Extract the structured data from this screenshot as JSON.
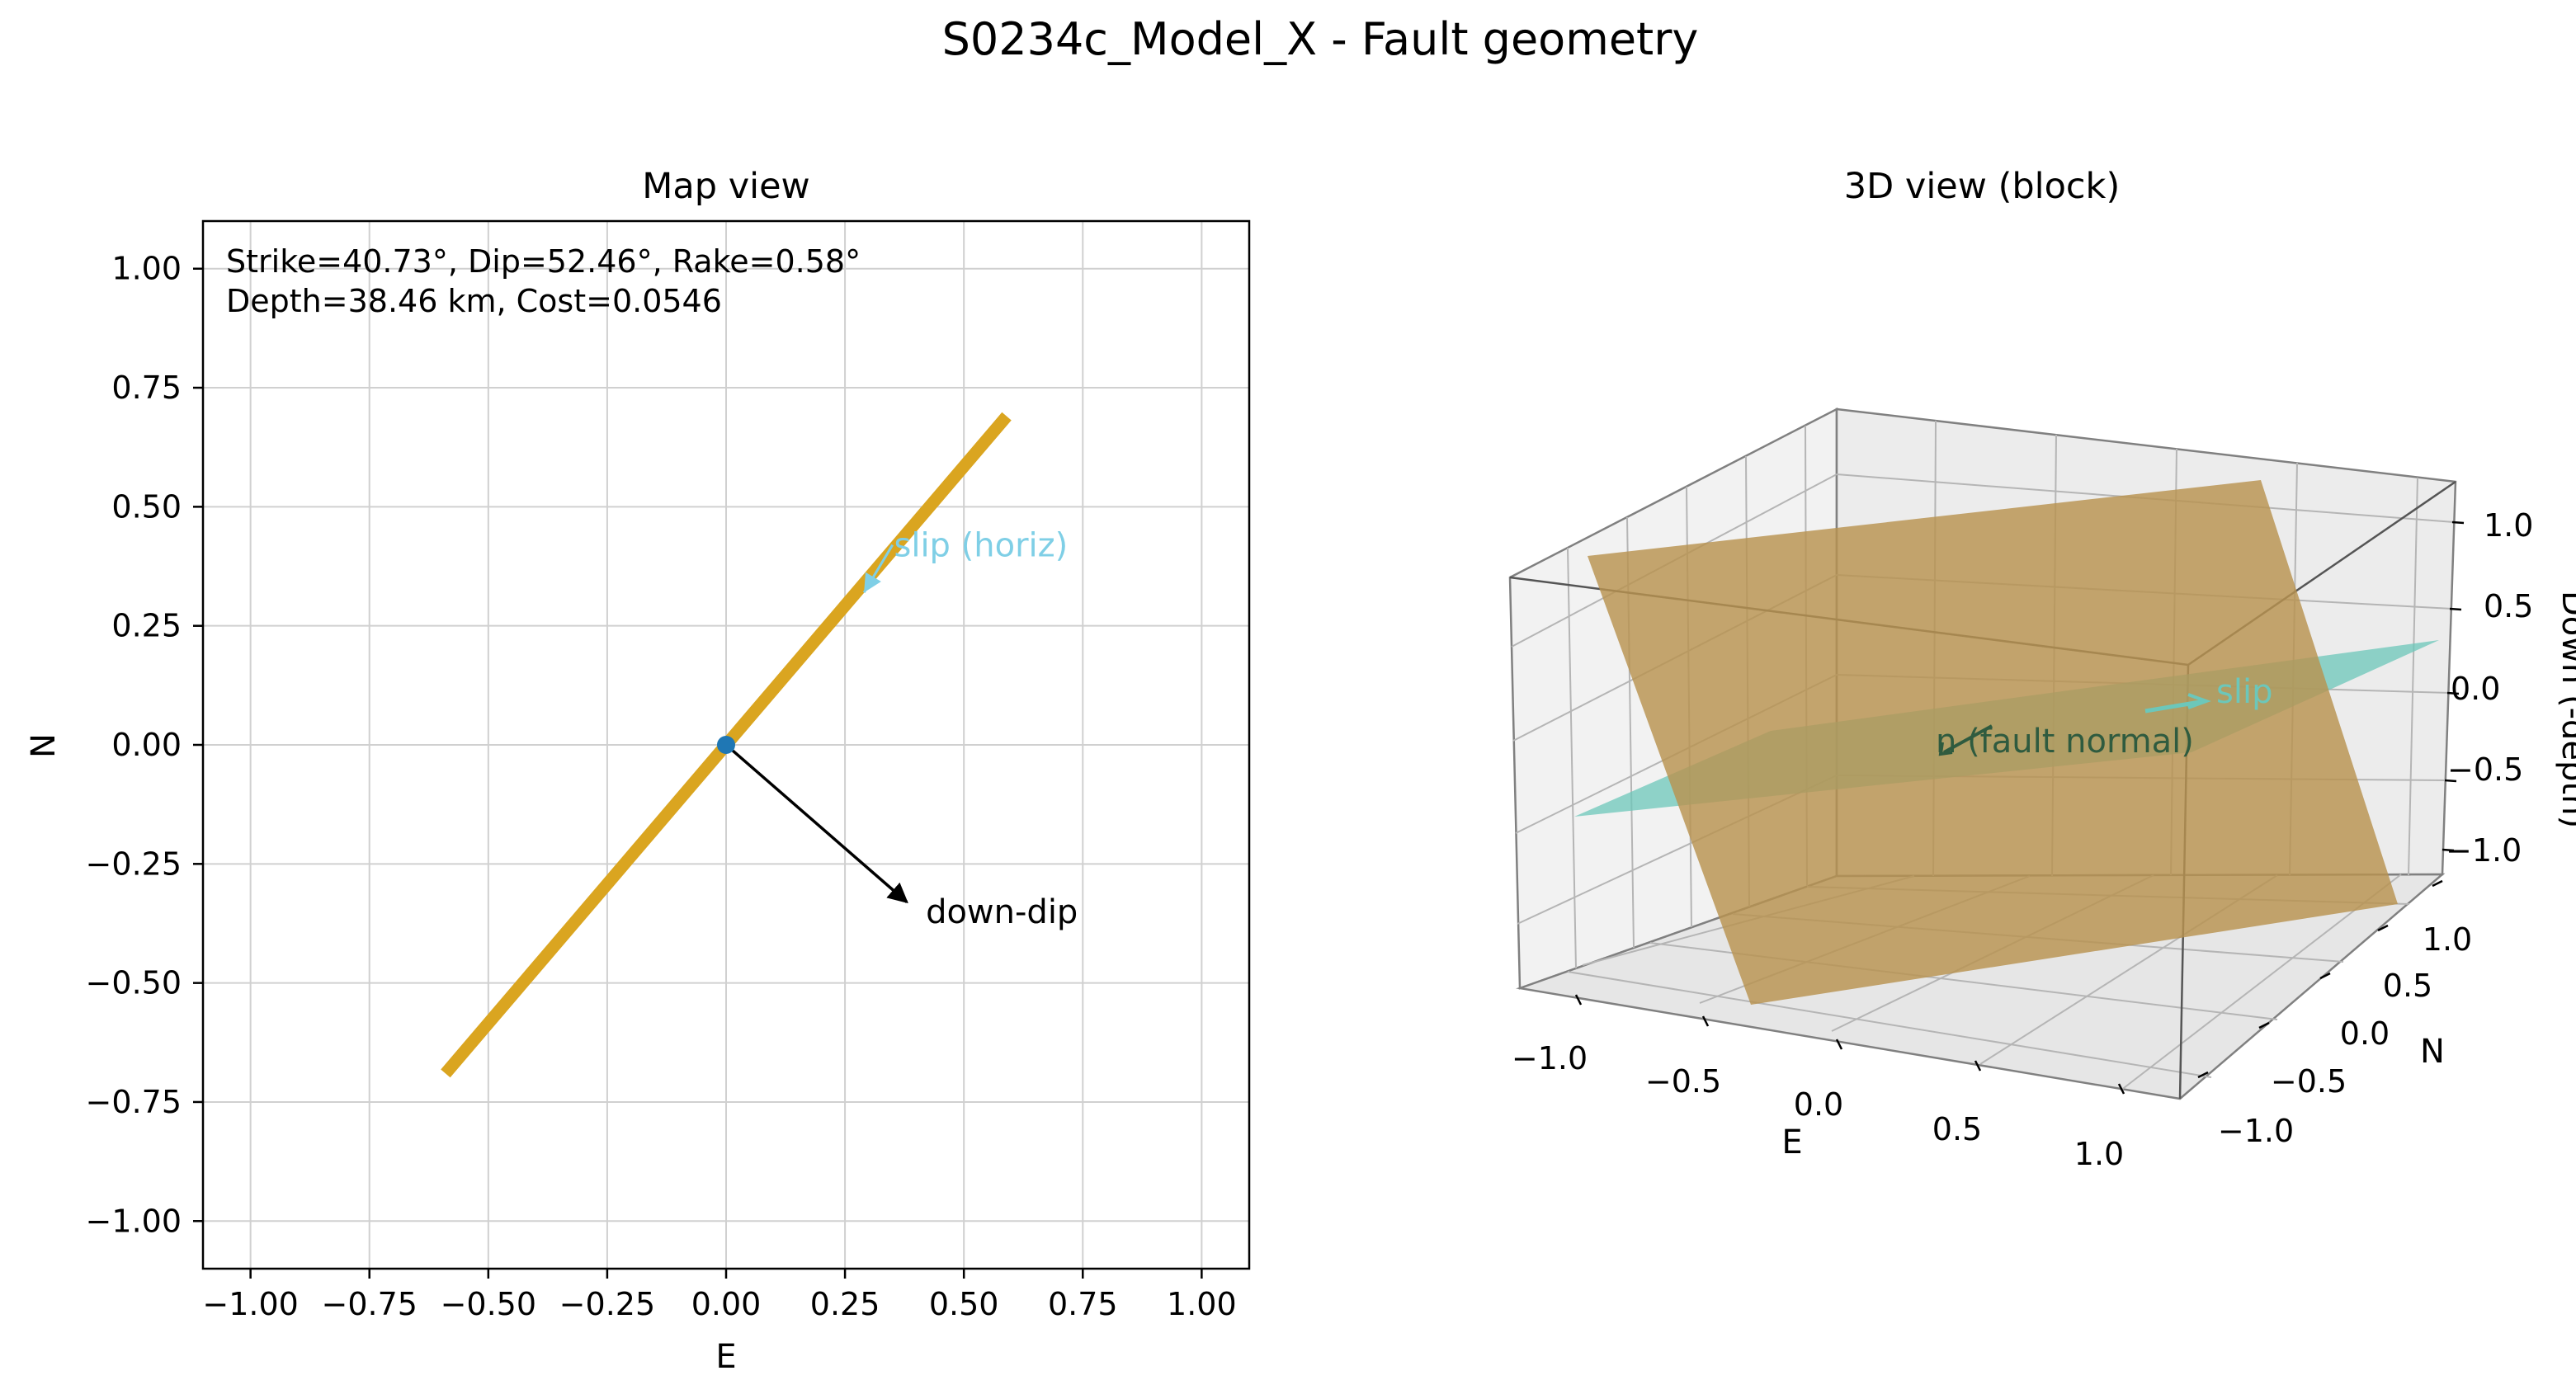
{
  "figure": {
    "suptitle": "S0234c_Model_X - Fault geometry"
  },
  "chart_data": [
    {
      "type": "line",
      "title": "Map view",
      "xlabel": "E",
      "ylabel": "N",
      "xlim": [
        -1.1,
        1.1
      ],
      "ylim": [
        -1.1,
        1.1
      ],
      "grid": true,
      "xticks": [
        -1.0,
        -0.75,
        -0.5,
        -0.25,
        0.0,
        0.25,
        0.5,
        0.75,
        1.0
      ],
      "yticks": [
        -1.0,
        -0.75,
        -0.5,
        -0.25,
        0.0,
        0.25,
        0.5,
        0.75,
        1.0
      ],
      "xtick_labels": [
        "−1.00",
        "−0.75",
        "−0.50",
        "−0.25",
        "0.00",
        "0.25",
        "0.50",
        "0.75",
        "1.00"
      ],
      "ytick_labels": [
        "−1.00",
        "−0.75",
        "−0.50",
        "−0.25",
        "0.00",
        "0.25",
        "0.50",
        "0.75",
        "1.00"
      ],
      "info_text": [
        "Strike=40.73°, Dip=52.46°, Rake=0.58°",
        "Depth=38.46 km, Cost=0.0546"
      ],
      "fault_trace": {
        "x": [
          -0.59,
          0.59
        ],
        "y": [
          -0.69,
          0.69
        ],
        "color": "#DAA520"
      },
      "epicenter": {
        "x": 0.0,
        "y": 0.0,
        "color": "#1f77b4"
      },
      "annotations": [
        {
          "label": "down-dip",
          "from": [
            0.0,
            0.0
          ],
          "to": [
            0.38,
            -0.33
          ],
          "text_at": [
            0.42,
            -0.35
          ],
          "color": "#000000"
        },
        {
          "label": "slip (horiz)",
          "from": [
            0.35,
            0.42
          ],
          "to": [
            0.29,
            0.32
          ],
          "text_at": [
            0.36,
            0.42
          ],
          "color": "#7FCFE6"
        }
      ]
    },
    {
      "type": "3d-surface",
      "title": "3D view (block)",
      "xlabel": "E",
      "ylabel": "N",
      "zlabel": "Down (-depth)",
      "xlim": [
        -1.2,
        1.2
      ],
      "ylim": [
        -1.2,
        1.2
      ],
      "zlim": [
        -1.2,
        1.2
      ],
      "xticks": [
        -1.0,
        -0.5,
        0.0,
        0.5,
        1.0
      ],
      "yticks": [
        -1.0,
        -0.5,
        0.0,
        0.5,
        1.0
      ],
      "zticks": [
        -1.0,
        -0.5,
        0.0,
        0.5,
        1.0
      ],
      "xtick_labels": [
        "−1.0",
        "−0.5",
        "0.0",
        "0.5",
        "1.0"
      ],
      "ytick_labels": [
        "−1.0",
        "−0.5",
        "0.0",
        "0.5",
        "1.0"
      ],
      "ztick_labels": [
        "−1.0",
        "−0.5",
        "0.0",
        "0.5",
        "1.0"
      ],
      "fault_plane_color": "#B8924F",
      "aux_plane_color": "#6CC7BA",
      "annotations": [
        {
          "label": "slip",
          "color": "#6CC7BA"
        },
        {
          "label": "n (fault normal)",
          "color": "#2F5B3F"
        }
      ]
    }
  ]
}
